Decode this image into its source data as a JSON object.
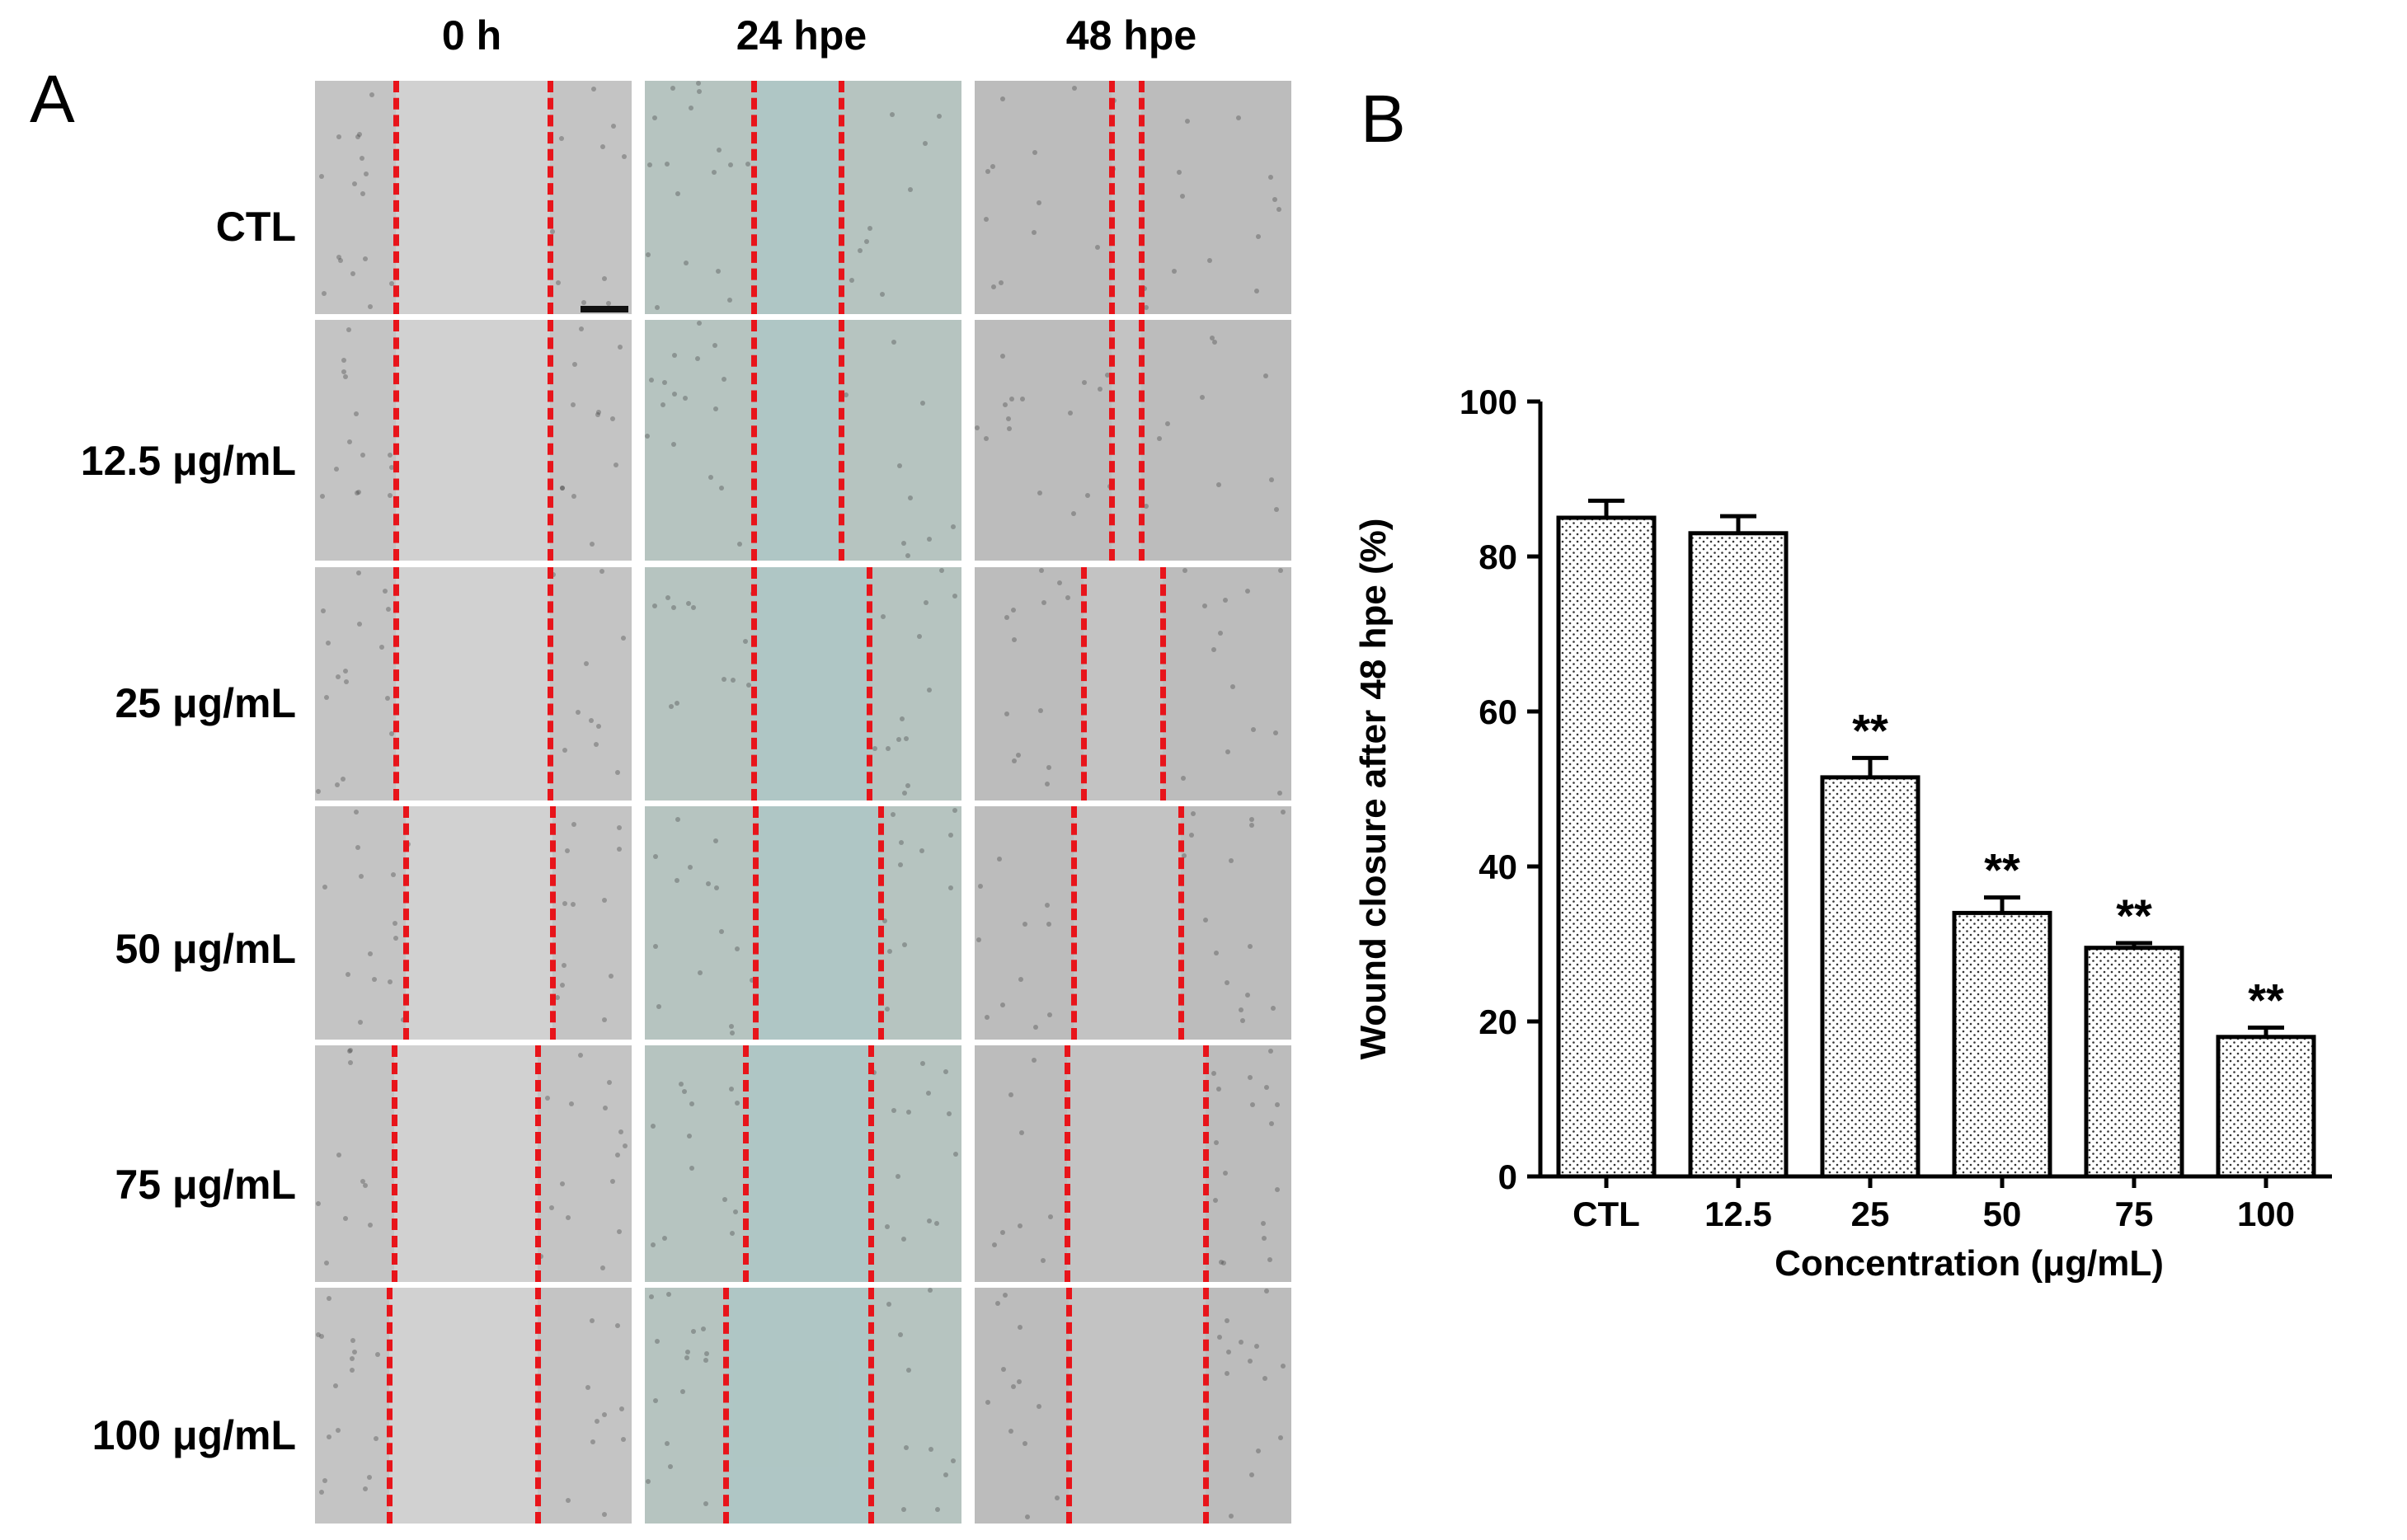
{
  "panel_a": {
    "letter": "A",
    "columns": [
      "0 h",
      "24 hpe",
      "48 hpe"
    ],
    "rows": [
      "CTL",
      "12.5 μg/mL",
      "25 μg/mL",
      "50 μg/mL",
      "75 μg/mL",
      "100 μg/mL"
    ],
    "line_color": "#e8141a"
  },
  "panel_b": {
    "letter": "B"
  },
  "chart_data": {
    "type": "bar",
    "title": "",
    "xlabel": "Concentration  (μg/mL)",
    "ylabel": "Wound closure after 48 hpe (%)",
    "categories": [
      "CTL",
      "12.5",
      "25",
      "50",
      "75",
      "100"
    ],
    "values": [
      85,
      83,
      51.5,
      34,
      29.5,
      18
    ],
    "errors": [
      2.2,
      2.2,
      2.5,
      2.0,
      0.6,
      1.2
    ],
    "annotations": [
      "",
      "",
      "**",
      "**",
      "**",
      "**"
    ],
    "ylim": [
      0,
      100
    ],
    "yticks": [
      0,
      20,
      40,
      60,
      80,
      100
    ],
    "grid": false,
    "bar_fill": "dotted",
    "legend": "none"
  }
}
